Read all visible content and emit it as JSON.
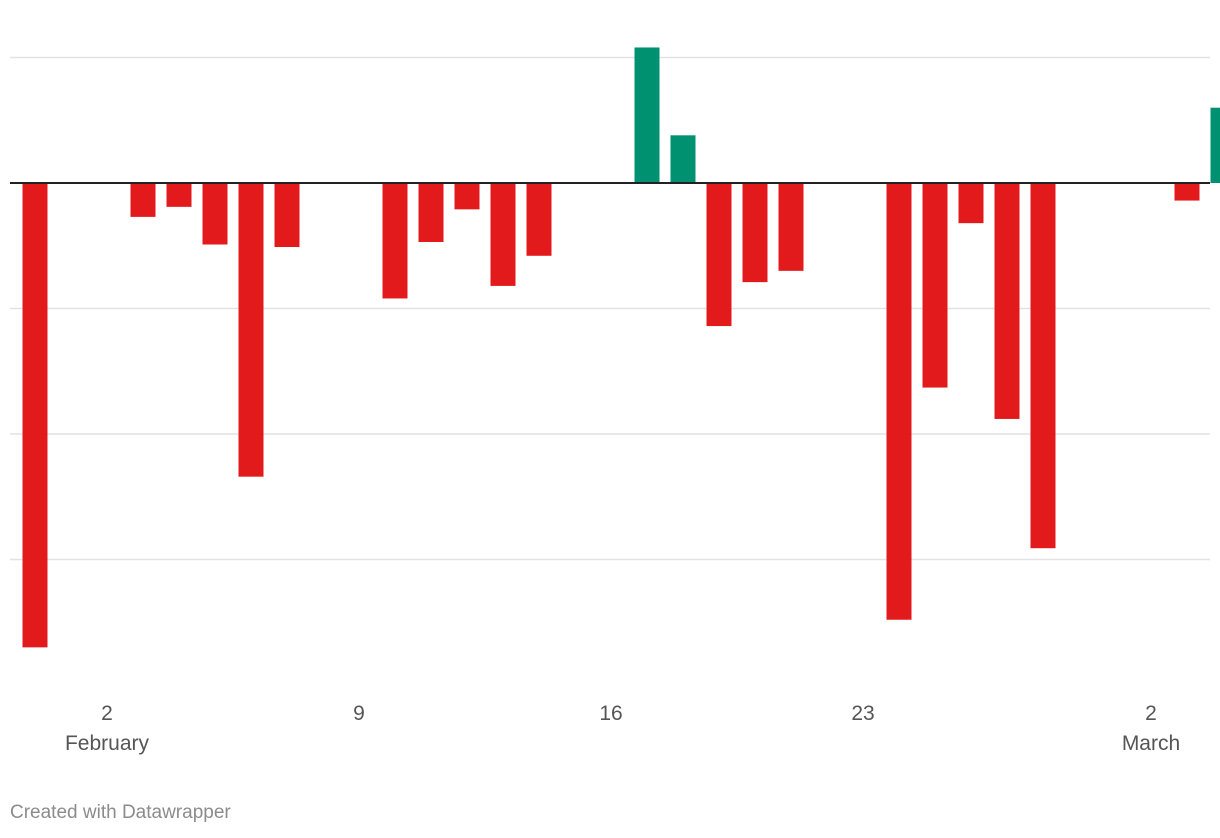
{
  "chart_data": {
    "type": "bar",
    "x": [
      "2020-01-31",
      "2020-02-01",
      "2020-02-02",
      "2020-02-03",
      "2020-02-04",
      "2020-02-05",
      "2020-02-06",
      "2020-02-07",
      "2020-02-08",
      "2020-02-09",
      "2020-02-10",
      "2020-02-11",
      "2020-02-12",
      "2020-02-13",
      "2020-02-14",
      "2020-02-15",
      "2020-02-16",
      "2020-02-17",
      "2020-02-18",
      "2020-02-19",
      "2020-02-20",
      "2020-02-21",
      "2020-02-22",
      "2020-02-23",
      "2020-02-24",
      "2020-02-25",
      "2020-02-26",
      "2020-02-27",
      "2020-02-28",
      "2020-02-29",
      "2020-03-01",
      "2020-03-02",
      "2020-03-03",
      "2020-03-04"
    ],
    "values": [
      -3.7,
      0,
      0,
      -0.27,
      -0.19,
      -0.49,
      -2.34,
      -0.51,
      0,
      0,
      -0.92,
      -0.47,
      -0.21,
      -0.82,
      -0.58,
      0,
      0,
      1.08,
      0.38,
      -1.14,
      -0.79,
      -0.7,
      0,
      0,
      -3.48,
      -1.63,
      -0.32,
      -1.88,
      -2.91,
      0,
      0,
      0,
      -0.14,
      0.6
    ],
    "ylim": [
      -4,
      1.3
    ],
    "gridlines": [
      1,
      -1,
      -2,
      -3
    ],
    "zero_line": true,
    "positive_color": "#009270",
    "negative_color": "#e31a1c",
    "x_ticks": [
      {
        "date": "2020-02-02",
        "label": "2",
        "month": "February"
      },
      {
        "date": "2020-02-09",
        "label": "9",
        "month": ""
      },
      {
        "date": "2020-02-16",
        "label": "16",
        "month": ""
      },
      {
        "date": "2020-02-23",
        "label": "23",
        "month": ""
      },
      {
        "date": "2020-03-02",
        "label": "2",
        "month": "March"
      }
    ],
    "grid": true,
    "legend": "none"
  },
  "footer": {
    "credit": "Created with Datawrapper"
  }
}
